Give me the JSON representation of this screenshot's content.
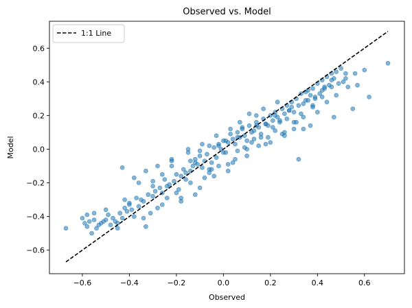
{
  "chart_data": {
    "type": "scatter",
    "title": "Observed vs. Model",
    "xlabel": "Observed",
    "ylabel": "Model",
    "xlim": [
      -0.74,
      0.77
    ],
    "ylim": [
      -0.74,
      0.76
    ],
    "xticks": [
      -0.6,
      -0.4,
      -0.2,
      0.0,
      0.2,
      0.4,
      0.6
    ],
    "yticks": [
      -0.6,
      -0.4,
      -0.2,
      0.0,
      0.2,
      0.4,
      0.6
    ],
    "xtick_labels": [
      "−0.6",
      "−0.4",
      "−0.2",
      "0.0",
      "0.2",
      "0.4",
      "0.6"
    ],
    "ytick_labels": [
      "−0.6",
      "−0.4",
      "−0.2",
      "0.0",
      "0.2",
      "0.4",
      "0.6"
    ],
    "grid": false,
    "legend_position": "top-left",
    "colors": {
      "points": "#1f77b4",
      "line": "#000000"
    },
    "series": [
      {
        "kind": "scatter",
        "color": "#1f77b4",
        "x": [
          -0.67,
          -0.6,
          -0.59,
          -0.58,
          -0.57,
          -0.56,
          -0.55,
          -0.54,
          -0.53,
          -0.52,
          -0.51,
          -0.5,
          -0.49,
          -0.48,
          -0.47,
          -0.46,
          -0.45,
          -0.44,
          -0.43,
          -0.43,
          -0.42,
          -0.41,
          -0.4,
          -0.39,
          -0.38,
          -0.37,
          -0.36,
          -0.35,
          -0.34,
          -0.33,
          -0.32,
          -0.31,
          -0.3,
          -0.29,
          -0.28,
          -0.27,
          -0.26,
          -0.25,
          -0.24,
          -0.23,
          -0.22,
          -0.21,
          -0.2,
          -0.19,
          -0.18,
          -0.17,
          -0.16,
          -0.15,
          -0.14,
          -0.13,
          -0.12,
          -0.11,
          -0.1,
          -0.09,
          -0.08,
          -0.07,
          -0.06,
          -0.05,
          -0.04,
          -0.03,
          -0.02,
          -0.01,
          0.0,
          0.01,
          0.02,
          0.03,
          0.04,
          0.05,
          0.06,
          0.07,
          0.08,
          0.09,
          0.1,
          0.11,
          0.12,
          0.13,
          0.14,
          0.15,
          0.16,
          0.17,
          0.18,
          0.19,
          0.2,
          0.21,
          0.22,
          0.23,
          0.24,
          0.25,
          0.26,
          0.27,
          0.28,
          0.29,
          0.3,
          0.31,
          0.32,
          0.33,
          0.34,
          0.35,
          0.36,
          0.37,
          0.38,
          0.39,
          0.4,
          0.41,
          0.42,
          0.43,
          0.44,
          0.45,
          0.46,
          0.47,
          0.48,
          0.49,
          0.5,
          0.51,
          0.52,
          0.53,
          0.55,
          0.57,
          0.62,
          0.7,
          -0.58,
          -0.55,
          -0.5,
          -0.45,
          -0.4,
          -0.36,
          -0.33,
          -0.3,
          -0.28,
          -0.26,
          -0.24,
          -0.22,
          -0.2,
          -0.18,
          -0.16,
          -0.14,
          -0.12,
          -0.1,
          -0.08,
          -0.06,
          -0.04,
          -0.02,
          0.0,
          0.02,
          0.04,
          0.06,
          0.08,
          0.1,
          0.12,
          0.14,
          0.16,
          0.18,
          0.2,
          0.22,
          0.24,
          0.26,
          0.28,
          0.3,
          0.32,
          0.34,
          0.36,
          0.38,
          0.4,
          0.42,
          0.44,
          0.46,
          0.48,
          -0.42,
          -0.38,
          -0.34,
          -0.3,
          -0.26,
          -0.22,
          -0.18,
          -0.14,
          -0.1,
          -0.06,
          -0.02,
          0.02,
          0.06,
          0.1,
          0.14,
          0.18,
          0.22,
          0.26,
          0.3,
          0.34,
          0.38,
          0.42,
          0.46,
          -0.15,
          -0.12,
          -0.09,
          -0.05,
          -0.03,
          0.01,
          0.03,
          0.05,
          0.07,
          0.09,
          0.11,
          0.13,
          0.15,
          0.17,
          0.19,
          0.21,
          0.23,
          0.25,
          0.27,
          0.29,
          0.31,
          0.33,
          0.35,
          0.37,
          0.39,
          0.43,
          0.47,
          0.52,
          0.56,
          0.6
        ],
        "y": [
          -0.47,
          -0.41,
          -0.44,
          -0.46,
          -0.43,
          -0.5,
          -0.38,
          -0.47,
          -0.45,
          -0.44,
          -0.43,
          -0.42,
          -0.39,
          -0.45,
          -0.41,
          -0.43,
          -0.47,
          -0.38,
          -0.11,
          -0.41,
          -0.35,
          -0.37,
          -0.32,
          -0.36,
          -0.4,
          -0.29,
          -0.34,
          -0.3,
          -0.31,
          -0.13,
          -0.27,
          -0.38,
          -0.28,
          -0.25,
          -0.1,
          -0.23,
          -0.26,
          -0.18,
          -0.22,
          -0.21,
          -0.06,
          -0.19,
          -0.15,
          -0.24,
          -0.16,
          -0.12,
          -0.14,
          -0.02,
          -0.13,
          -0.1,
          -0.06,
          -0.09,
          -0.04,
          -0.11,
          -0.07,
          -0.03,
          0.02,
          -0.08,
          0.01,
          -0.05,
          0.03,
          0.0,
          -0.02,
          0.05,
          0.04,
          0.09,
          0.06,
          0.03,
          0.1,
          0.07,
          0.12,
          0.08,
          0.05,
          0.14,
          0.1,
          0.11,
          0.16,
          0.13,
          0.09,
          0.18,
          0.15,
          0.14,
          0.2,
          0.17,
          0.22,
          0.19,
          0.16,
          0.24,
          0.21,
          0.26,
          0.23,
          0.28,
          0.22,
          0.3,
          -0.06,
          0.33,
          0.27,
          0.29,
          0.35,
          0.32,
          0.36,
          0.3,
          0.39,
          0.33,
          0.41,
          0.37,
          0.43,
          0.38,
          0.45,
          0.42,
          0.46,
          0.39,
          0.48,
          0.4,
          0.45,
          0.37,
          0.24,
          0.38,
          0.31,
          0.51,
          -0.39,
          -0.42,
          -0.36,
          -0.44,
          -0.33,
          -0.2,
          -0.46,
          -0.22,
          -0.35,
          -0.15,
          -0.29,
          -0.07,
          -0.26,
          -0.31,
          -0.18,
          -0.2,
          -0.27,
          -0.01,
          -0.17,
          -0.12,
          -0.16,
          -0.1,
          0.05,
          -0.13,
          -0.08,
          -0.01,
          0.13,
          -0.04,
          0.04,
          0.2,
          0.07,
          0.15,
          0.04,
          0.11,
          0.17,
          0.08,
          0.23,
          0.12,
          0.26,
          0.19,
          0.29,
          0.25,
          0.22,
          0.35,
          0.28,
          0.41,
          0.32,
          -0.3,
          -0.17,
          -0.41,
          -0.19,
          -0.33,
          -0.1,
          -0.29,
          -0.07,
          -0.23,
          -0.14,
          0.02,
          -0.09,
          0.07,
          0.0,
          0.14,
          0.03,
          0.2,
          0.1,
          0.16,
          0.12,
          0.26,
          0.31,
          0.37,
          0.0,
          -0.08,
          0.03,
          -0.12,
          0.08,
          -0.02,
          0.12,
          -0.06,
          0.16,
          0.01,
          0.21,
          0.06,
          0.02,
          0.24,
          0.07,
          0.13,
          0.28,
          0.09,
          0.18,
          0.25,
          0.16,
          0.21,
          0.34,
          0.14,
          0.31,
          0.36,
          0.19,
          0.42,
          0.45,
          0.47
        ]
      },
      {
        "kind": "line",
        "name": "1:1 Line",
        "style": "dashed",
        "color": "#000000",
        "x": [
          -0.67,
          0.7
        ],
        "y": [
          -0.67,
          0.7
        ]
      }
    ]
  }
}
